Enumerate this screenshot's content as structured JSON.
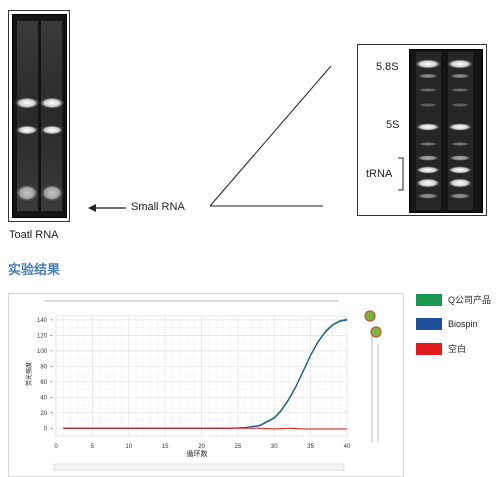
{
  "gel_left": {
    "caption": "Toatl RNA"
  },
  "small_rna": {
    "label": "Small RNA"
  },
  "gel_right": {
    "bands": [
      "5.8S",
      "5S",
      "tRNA"
    ]
  },
  "section": {
    "title": "实验结果"
  },
  "legend": [
    {
      "label": "Q公司产品",
      "color": "#1a9850"
    },
    {
      "label": "Biospin",
      "color": "#1f4e9c"
    },
    {
      "label": "空白",
      "color": "#e31a1c"
    }
  ],
  "chart_data": {
    "type": "line",
    "xlabel": "循环数",
    "ylabel": "荧光强度",
    "xlim": [
      0,
      40
    ],
    "ylim": [
      -10,
      145
    ],
    "xticks": [
      "0",
      "5",
      "10",
      "15",
      "20",
      "25",
      "30",
      "35",
      "40"
    ],
    "yticks": [
      "0",
      "20",
      "40",
      "60",
      "80",
      "100",
      "120",
      "140"
    ],
    "grid": true,
    "series": [
      {
        "name": "Q公司产品",
        "color": "#1a9850",
        "x": [
          1,
          5,
          10,
          15,
          20,
          24,
          26,
          28,
          30,
          31,
          32,
          33,
          34,
          35,
          36,
          37,
          38,
          39,
          40
        ],
        "y": [
          0,
          0,
          0,
          0,
          0,
          0,
          1,
          4,
          14,
          24,
          38,
          55,
          75,
          95,
          112,
          125,
          134,
          139,
          141
        ]
      },
      {
        "name": "Biospin",
        "color": "#1f4e9c",
        "x": [
          1,
          5,
          10,
          15,
          20,
          24,
          26,
          28,
          30,
          31,
          32,
          33,
          34,
          35,
          36,
          37,
          38,
          39,
          40
        ],
        "y": [
          0,
          0,
          0,
          0,
          0,
          0,
          1,
          3,
          13,
          23,
          37,
          54,
          74,
          94,
          111,
          124,
          133,
          138,
          140
        ]
      },
      {
        "name": "空白",
        "color": "#e31a1c",
        "x": [
          1,
          5,
          10,
          11,
          15,
          20,
          25,
          28,
          30,
          32,
          34,
          36,
          38,
          40
        ],
        "y": [
          0,
          0,
          0,
          0,
          0,
          0,
          0,
          0,
          -1,
          0,
          -1,
          -1,
          -1,
          -1
        ]
      }
    ]
  }
}
